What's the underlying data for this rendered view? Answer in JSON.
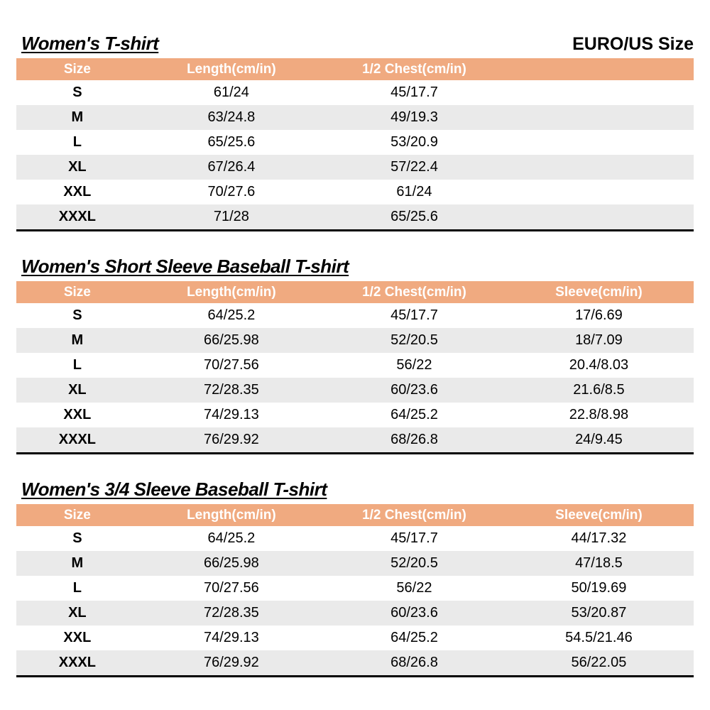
{
  "page": {
    "euro_us_size_label": "EURO/US Size"
  },
  "colors": {
    "header_bg": "#F0AA80",
    "alt_row_bg": "#EAEAEA",
    "header_text": "#ffffff",
    "table_bottom_border": "#000000"
  },
  "tables": [
    {
      "title": "Women's T-shirt",
      "columns": [
        "Size",
        "Length(cm/in)",
        "1/2 Chest(cm/in)",
        ""
      ],
      "rows": [
        [
          "S",
          "61/24",
          "45/17.7",
          ""
        ],
        [
          "M",
          "63/24.8",
          "49/19.3",
          ""
        ],
        [
          "L",
          "65/25.6",
          "53/20.9",
          ""
        ],
        [
          "XL",
          "67/26.4",
          "57/22.4",
          ""
        ],
        [
          "XXL",
          "70/27.6",
          "61/24",
          ""
        ],
        [
          "XXXL",
          "71/28",
          "65/25.6",
          ""
        ]
      ]
    },
    {
      "title": "Women's Short Sleeve Baseball T-shirt",
      "columns": [
        "Size",
        "Length(cm/in)",
        "1/2 Chest(cm/in)",
        "Sleeve(cm/in)"
      ],
      "rows": [
        [
          "S",
          "64/25.2",
          "45/17.7",
          "17/6.69"
        ],
        [
          "M",
          "66/25.98",
          "52/20.5",
          "18/7.09"
        ],
        [
          "L",
          "70/27.56",
          "56/22",
          "20.4/8.03"
        ],
        [
          "XL",
          "72/28.35",
          "60/23.6",
          "21.6/8.5"
        ],
        [
          "XXL",
          "74/29.13",
          "64/25.2",
          "22.8/8.98"
        ],
        [
          "XXXL",
          "76/29.92",
          "68/26.8",
          "24/9.45"
        ]
      ]
    },
    {
      "title": "Women's 3/4 Sleeve Baseball T-shirt",
      "columns": [
        "Size",
        "Length(cm/in)",
        "1/2 Chest(cm/in)",
        "Sleeve(cm/in)"
      ],
      "rows": [
        [
          "S",
          "64/25.2",
          "45/17.7",
          "44/17.32"
        ],
        [
          "M",
          "66/25.98",
          "52/20.5",
          "47/18.5"
        ],
        [
          "L",
          "70/27.56",
          "56/22",
          "50/19.69"
        ],
        [
          "XL",
          "72/28.35",
          "60/23.6",
          "53/20.87"
        ],
        [
          "XXL",
          "74/29.13",
          "64/25.2",
          "54.5/21.46"
        ],
        [
          "XXXL",
          "76/29.92",
          "68/26.8",
          "56/22.05"
        ]
      ]
    }
  ]
}
